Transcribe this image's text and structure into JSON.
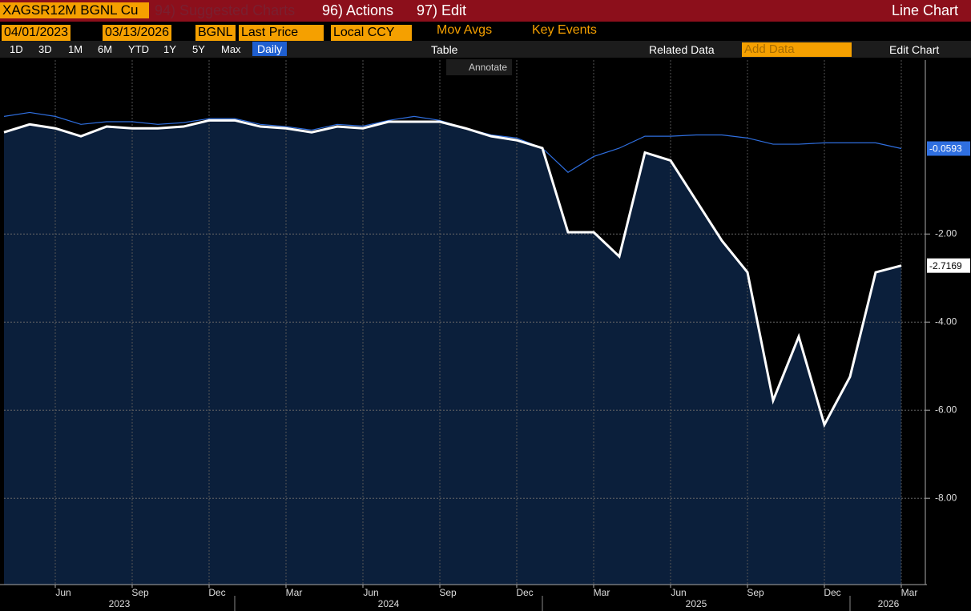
{
  "toolbar": {
    "ticker": "XAGSR12M BGNL Cu",
    "suggested": "94) Suggested Charts",
    "actions": "96) Actions",
    "edit": "97) Edit",
    "title": "Line Chart"
  },
  "controls": {
    "start": "04/01/2023",
    "end": "03/13/2026",
    "source": "BGNL",
    "field": "Last Price",
    "currency": "Local CCY",
    "mov_avgs": "Mov Avgs",
    "key_events": "Key Events"
  },
  "periods": [
    "1D",
    "3D",
    "1M",
    "6M",
    "YTD",
    "1Y",
    "5Y",
    "Max"
  ],
  "frequency": "Daily",
  "table": "Table",
  "related": "Related Data",
  "add_data": "Add Data",
  "edit_chart": "Edit Chart",
  "annotate": "Annotate",
  "chart_data": {
    "type": "line",
    "x": [
      "2023-04",
      "2023-05",
      "2023-06",
      "2023-07",
      "2023-08",
      "2023-09",
      "2023-10",
      "2023-11",
      "2023-12",
      "2024-01",
      "2024-02",
      "2024-03",
      "2024-04",
      "2024-05",
      "2024-06",
      "2024-07",
      "2024-08",
      "2024-09",
      "2024-10",
      "2024-11",
      "2024-12",
      "2025-01",
      "2025-02",
      "2025-03",
      "2025-04",
      "2025-05",
      "2025-06",
      "2025-07",
      "2025-08",
      "2025-09",
      "2025-10",
      "2025-11",
      "2025-12",
      "2026-01",
      "2026-02",
      "2026-03"
    ],
    "series": [
      {
        "color": "#ffffff",
        "values": [
          0.31,
          0.49,
          0.4,
          0.22,
          0.44,
          0.4,
          0.4,
          0.44,
          0.58,
          0.58,
          0.44,
          0.4,
          0.31,
          0.44,
          0.4,
          0.55,
          0.55,
          0.55,
          0.4,
          0.22,
          0.13,
          -0.05,
          -1.96,
          -1.96,
          -2.51,
          -0.15,
          -0.33,
          -1.24,
          -2.15,
          -2.87,
          -5.78,
          -4.33,
          -6.33,
          -5.24,
          -2.87,
          -2.7169
        ]
      },
      {
        "color": "#2f6fe0",
        "values": [
          0.67,
          0.76,
          0.67,
          0.49,
          0.55,
          0.55,
          0.49,
          0.53,
          0.62,
          0.62,
          0.49,
          0.44,
          0.36,
          0.49,
          0.45,
          0.58,
          0.67,
          0.58,
          0.4,
          0.25,
          0.18,
          -0.05,
          -0.6,
          -0.24,
          -0.05,
          0.22,
          0.22,
          0.25,
          0.25,
          0.18,
          0.04,
          0.04,
          0.07,
          0.07,
          0.07,
          -0.0593
        ]
      }
    ],
    "fill": "#0b1f3b",
    "xlim": [
      "2023-04",
      "2026-04"
    ],
    "xticks": [
      {
        "value": "2023-06",
        "label": "Jun"
      },
      {
        "value": "2023-09",
        "label": "Sep"
      },
      {
        "value": "2023-12",
        "label": "Dec"
      },
      {
        "value": "2024-03",
        "label": "Mar"
      },
      {
        "value": "2024-06",
        "label": "Jun"
      },
      {
        "value": "2024-09",
        "label": "Sep"
      },
      {
        "value": "2024-12",
        "label": "Dec"
      },
      {
        "value": "2025-03",
        "label": "Mar"
      },
      {
        "value": "2025-06",
        "label": "Jun"
      },
      {
        "value": "2025-09",
        "label": "Sep"
      },
      {
        "value": "2025-12",
        "label": "Dec"
      },
      {
        "value": "2026-03",
        "label": "Mar"
      }
    ],
    "years": [
      "2023",
      "2024",
      "2025",
      "2026"
    ],
    "ylim": [
      -9.96,
      1.95
    ],
    "yticks": [
      {
        "value": -2,
        "label": "-2.00"
      },
      {
        "value": -4,
        "label": "-4.00"
      },
      {
        "value": -6,
        "label": "-6.00"
      },
      {
        "value": -8,
        "label": "-8.00"
      }
    ],
    "grid": true
  }
}
